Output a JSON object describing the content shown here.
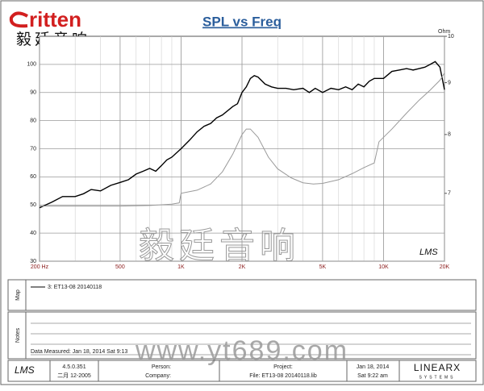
{
  "header": {
    "brand": "ritten",
    "brand_cn": "毅廷音响"
  },
  "chart_data": {
    "type": "line",
    "title": "SPL vs Freq",
    "y2_label": "Ohm",
    "annotation": "LMS",
    "xscale": "log",
    "y2scale": "log",
    "grid": true,
    "xlim": [
      200,
      20000
    ],
    "xticks": [
      {
        "value": 200,
        "label": "200 Hz"
      },
      500,
      {
        "value": 1000,
        "label": "1K"
      },
      {
        "value": 2000,
        "label": "2K"
      },
      {
        "value": 5000,
        "label": "5K"
      },
      {
        "value": 10000,
        "label": "10K"
      },
      {
        "value": 20000,
        "label": "20K"
      }
    ],
    "ylim": [
      30,
      110
    ],
    "yticks": [
      30,
      40,
      50,
      60,
      70,
      80,
      90,
      100
    ],
    "y2lim": [
      6,
      10
    ],
    "y2ticks": [
      7,
      8,
      9,
      10
    ],
    "series": [
      {
        "name": "3: ET13-08  20140118",
        "color": "#000000",
        "x": [
          200,
          230,
          260,
          300,
          330,
          360,
          400,
          450,
          500,
          550,
          600,
          650,
          700,
          750,
          800,
          850,
          900,
          1000,
          1100,
          1200,
          1300,
          1400,
          1500,
          1600,
          1800,
          1900,
          2000,
          2100,
          2200,
          2300,
          2400,
          2600,
          2800,
          3000,
          3300,
          3600,
          4000,
          4300,
          4600,
          5000,
          5500,
          6000,
          6500,
          7000,
          7500,
          8000,
          8500,
          9000,
          10000,
          11000,
          12000,
          13000,
          14000,
          15000,
          16000,
          17000,
          18000,
          19000,
          20000
        ],
        "values": [
          49,
          51,
          53,
          53,
          54,
          55.5,
          55,
          57,
          58,
          59,
          61,
          62,
          63,
          62,
          64,
          66,
          67,
          70,
          73,
          76,
          78,
          79,
          81,
          82,
          85,
          86,
          90,
          92,
          95,
          96,
          95.5,
          93,
          92,
          91.5,
          91.5,
          91,
          91.5,
          90,
          91.5,
          90,
          91.5,
          91,
          92,
          91,
          93,
          92,
          94,
          95,
          95,
          97.5,
          98,
          98.5,
          98,
          98.5,
          99,
          100,
          101,
          99,
          91
        ]
      },
      {
        "axis": "y2",
        "color": "#9a9a9a",
        "x": [
          200,
          300,
          500,
          700,
          900,
          980,
          1000,
          1200,
          1400,
          1600,
          1800,
          2000,
          2100,
          2200,
          2400,
          2700,
          3000,
          3500,
          4000,
          4500,
          5000,
          6000,
          7000,
          8000,
          9000,
          9500,
          11000,
          13000,
          15000,
          17000,
          19000,
          20000
        ],
        "values": [
          6.8,
          6.8,
          6.8,
          6.81,
          6.83,
          6.85,
          7.0,
          7.05,
          7.15,
          7.35,
          7.65,
          8.0,
          8.1,
          8.1,
          7.95,
          7.6,
          7.4,
          7.25,
          7.17,
          7.15,
          7.16,
          7.22,
          7.32,
          7.42,
          7.5,
          7.87,
          8.1,
          8.4,
          8.65,
          8.85,
          9.05,
          9.2
        ]
      }
    ]
  },
  "panels": {
    "map": "Map",
    "notes": "Notes",
    "measured": "Data Measured: Jan 18, 2014  Sat  9:13"
  },
  "footer": {
    "logo": "LMS",
    "version": "4.5.0.351",
    "build": "二月 12-2005",
    "person": "Person:",
    "company": "Company:",
    "project": "Project:",
    "file": "File: ET13-08 20140118.lib",
    "date": "Jan 18, 2014",
    "time": "Sat  9:22 am",
    "vendor": "LINEARX",
    "vendor_sub": "SYSTEMS"
  },
  "watermark": {
    "brand": "毅廷音响",
    "url": "www.yt689.com"
  }
}
